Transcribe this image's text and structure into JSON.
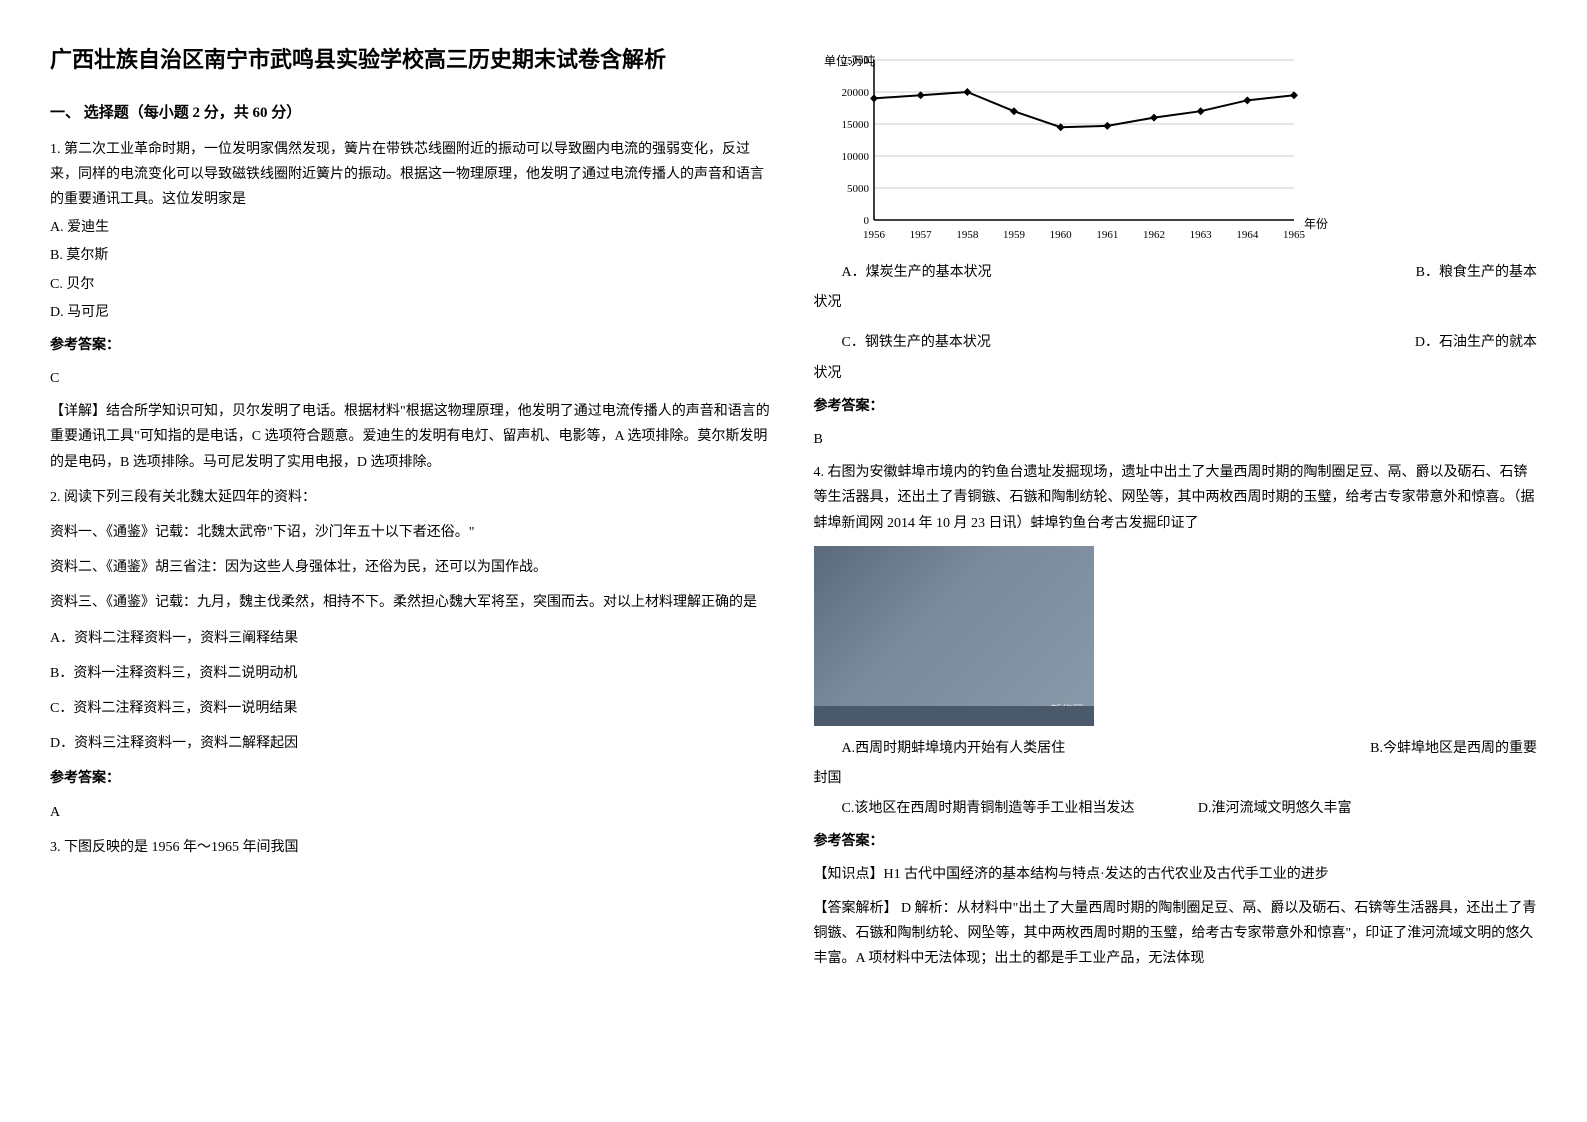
{
  "title": "广西壮族自治区南宁市武鸣县实验学校高三历史期末试卷含解析",
  "section1": {
    "header": "一、 选择题（每小题 2 分，共 60 分）"
  },
  "q1": {
    "stem": "1. 第二次工业革命时期，一位发明家偶然发现，簧片在带铁芯线圈附近的振动可以导致圈内电流的强弱变化，反过来，同样的电流变化可以导致磁铁线圈附近簧片的振动。根据这一物理原理，他发明了通过电流传播人的声音和语言的重要通讯工具。这位发明家是",
    "optA": "A. 爱迪生",
    "optB": "B. 莫尔斯",
    "optC": "C. 贝尔",
    "optD": "D. 马可尼",
    "answerLabel": "参考答案：",
    "answer": "C",
    "explanation": "【详解】结合所学知识可知，贝尔发明了电话。根据材料\"根据这物理原理，他发明了通过电流传播人的声音和语言的重要通讯工具\"可知指的是电话，C 选项符合题意。爱迪生的发明有电灯、留声机、电影等，A 选项排除。莫尔斯发明的是电码，B 选项排除。马可尼发明了实用电报，D 选项排除。"
  },
  "q2": {
    "stem": "2. 阅读下列三段有关北魏太延四年的资料：",
    "mat1": "资料一、《通鉴》记载：北魏太武帝\"下诏，沙门年五十以下者还俗。\"",
    "mat2": "资料二、《通鉴》胡三省注：因为这些人身强体壮，还俗为民，还可以为国作战。",
    "mat3": "资料三、《通鉴》记载：九月，魏主伐柔然，相持不下。柔然担心魏大军将至，突围而去。对以上材料理解正确的是",
    "optA": "A．资料二注释资料一，资料三阐释结果",
    "optB": "B．资料一注释资料三，资料二说明动机",
    "optC": "C．资料二注释资料三，资料一说明结果",
    "optD": "D．资料三注释资料一，资料二解释起因",
    "answerLabel": "参考答案：",
    "answer": "A"
  },
  "q3": {
    "stem": "3. 下图反映的是 1956 年～1965 年间我国",
    "chart": {
      "ylabel": "单位:万吨",
      "xlabel": "年份",
      "ymax": 25000,
      "yticks": [
        0,
        5000,
        10000,
        15000,
        20000,
        25000
      ],
      "years": [
        1956,
        1957,
        1958,
        1959,
        1960,
        1961,
        1962,
        1963,
        1964,
        1965
      ],
      "values": [
        19000,
        19500,
        20000,
        17000,
        14500,
        14700,
        16000,
        17000,
        18700,
        19500
      ],
      "line_color": "#000000",
      "marker_color": "#000000",
      "background_color": "#ffffff",
      "grid_color": "#cccccc"
    },
    "optA": "A．煤炭生产的基本状况",
    "optB": "B．粮食生产的基本",
    "optB2": "状况",
    "optC": "C．钢铁生产的基本状况",
    "optD": "D．石油生产的就本",
    "optD2": "状况",
    "answerLabel": "参考答案：",
    "answer": "B"
  },
  "q4": {
    "stem": "    4. 右图为安徽蚌埠市境内的钓鱼台遗址发掘现场，遗址中出土了大量西周时期的陶制圈足豆、鬲、爵以及砺石、石锛等生活器具，还出土了青铜镞、石镞和陶制纺轮、网坠等，其中两枚西周时期的玉璧，给考古专家带意外和惊喜。（据蚌埠新闻网 2014 年 10 月 23 日讯）蚌埠钓鱼台考古发掘印证了",
    "optA": "A.西周时期蚌埠境内开始有人类居住",
    "optB": "B.今蚌埠地区是西周的重要",
    "optB2": "封国",
    "optC": "C.该地区在西周时期青铜制造等手工业相当发达",
    "optD": "D.淮河流域文明悠久丰富",
    "answerLabel": "参考答案：",
    "knowledge": "【知识点】H1 古代中国经济的基本结构与特点·发达的古代农业及古代手工业的进步",
    "explanation": "【答案解析】 D 解析：从材料中\"出土了大量西周时期的陶制圈足豆、鬲、爵以及砺石、石锛等生活器具，还出土了青铜镞、石镞和陶制纺轮、网坠等，其中两枚西周时期的玉璧，给考古专家带意外和惊喜\"，印证了淮河流域文明的悠久丰富。A 项材料中无法体现；出土的都是手工业产品，无法体现"
  }
}
